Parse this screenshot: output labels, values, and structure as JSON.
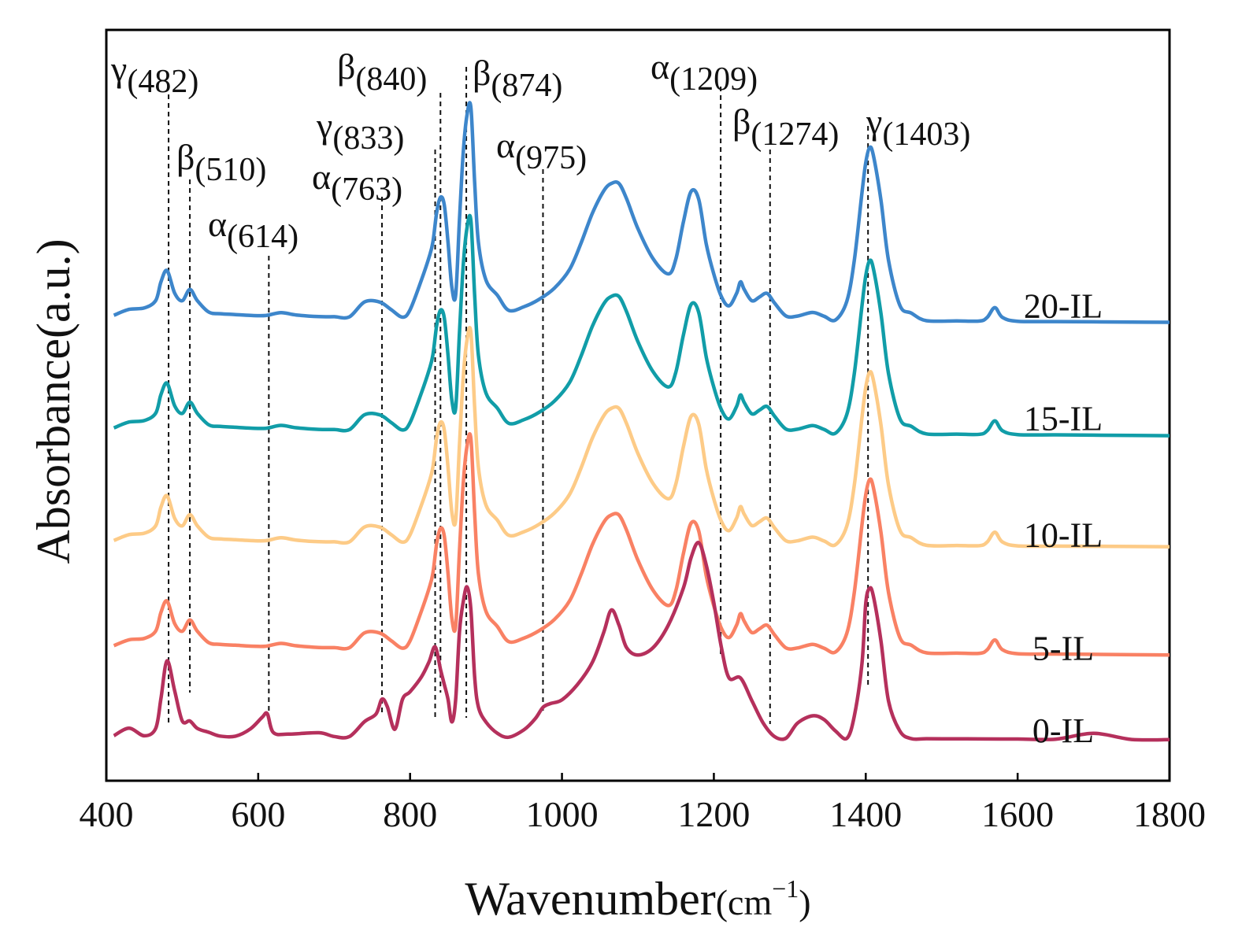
{
  "chart_data": {
    "type": "line",
    "title": "",
    "xlabel": "Wavenumber",
    "xlabel_unit": "(cm",
    "xlabel_sup": "−1",
    "xlabel_close": ")",
    "ylabel": "Absorbance(a.u.)",
    "xlim": [
      400,
      1800
    ],
    "ylim": [
      0,
      100
    ],
    "xticks": [
      400,
      600,
      800,
      1000,
      1200,
      1400,
      1600,
      1800
    ],
    "grid": false,
    "y_ticks_shown": false,
    "series": [
      {
        "name": "20-IL",
        "color": "#3d86cb",
        "baseline": 62,
        "x": [
          410,
          430,
          450,
          465,
          472,
          480,
          490,
          500,
          510,
          520,
          535,
          550,
          570,
          590,
          610,
          630,
          650,
          680,
          700,
          720,
          740,
          760,
          775,
          790,
          800,
          815,
          825,
          830,
          835,
          840,
          845,
          850,
          855,
          860,
          865,
          870,
          875,
          880,
          885,
          890,
          900,
          915,
          930,
          950,
          970,
          990,
          1010,
          1025,
          1040,
          1055,
          1065,
          1075,
          1085,
          1100,
          1120,
          1140,
          1150,
          1160,
          1170,
          1180,
          1190,
          1200,
          1210,
          1220,
          1230,
          1235,
          1240,
          1250,
          1260,
          1270,
          1280,
          1295,
          1310,
          1330,
          1345,
          1360,
          1375,
          1385,
          1395,
          1400,
          1405,
          1410,
          1420,
          1430,
          1445,
          1460,
          1480,
          1520,
          1550,
          1560,
          1570,
          1580,
          1600,
          1650,
          1700,
          1750,
          1800
        ],
        "y": [
          0,
          0.8,
          1,
          2,
          4.5,
          6,
          3,
          2,
          3.5,
          2,
          0.5,
          0.3,
          0.2,
          0.1,
          0.1,
          0.5,
          0.2,
          0,
          0,
          0,
          2,
          2,
          1,
          0,
          1,
          5,
          8,
          10,
          14,
          16,
          15,
          10,
          4,
          3,
          13,
          22,
          27,
          28,
          18,
          10,
          5,
          3,
          1,
          1.5,
          2.5,
          4,
          6.5,
          10,
          14,
          17,
          18,
          18,
          16,
          12,
          8,
          6,
          8,
          13,
          17,
          16,
          10,
          6,
          3,
          1.8,
          3.5,
          5,
          4,
          2.5,
          3,
          3.5,
          2.2,
          0.5,
          0.5,
          1,
          0.5,
          0,
          2.5,
          8,
          17,
          21,
          23,
          22,
          16,
          8,
          2,
          1,
          0,
          0,
          0,
          0.5,
          1.8,
          0.5,
          0,
          0,
          0,
          0,
          0
        ]
      },
      {
        "name": "15-IL",
        "color": "#119da8",
        "baseline": 47,
        "x": [
          410,
          430,
          450,
          465,
          472,
          480,
          490,
          500,
          510,
          520,
          535,
          550,
          570,
          590,
          610,
          630,
          650,
          680,
          700,
          720,
          740,
          760,
          775,
          790,
          800,
          815,
          825,
          830,
          835,
          840,
          845,
          850,
          855,
          860,
          865,
          870,
          875,
          880,
          885,
          890,
          900,
          915,
          930,
          950,
          970,
          990,
          1010,
          1025,
          1040,
          1055,
          1065,
          1075,
          1085,
          1100,
          1120,
          1140,
          1150,
          1160,
          1170,
          1180,
          1190,
          1200,
          1210,
          1220,
          1230,
          1235,
          1240,
          1250,
          1260,
          1270,
          1280,
          1295,
          1310,
          1330,
          1345,
          1360,
          1375,
          1385,
          1395,
          1400,
          1405,
          1410,
          1420,
          1430,
          1445,
          1460,
          1480,
          1520,
          1550,
          1560,
          1570,
          1580,
          1600,
          1650,
          1700,
          1750,
          1800
        ],
        "y": [
          0,
          0.8,
          1,
          2,
          4.5,
          6,
          3,
          2,
          3.5,
          2,
          0.5,
          0.3,
          0.2,
          0.1,
          0.1,
          0.5,
          0.2,
          0,
          0,
          0,
          2,
          2,
          1,
          0,
          1,
          5,
          8,
          10,
          14,
          16,
          15,
          10,
          4,
          3,
          13,
          22,
          27,
          28,
          18,
          10,
          5,
          3,
          1,
          1.5,
          2.5,
          4,
          6.5,
          10,
          14,
          17,
          18,
          18,
          16,
          12,
          8,
          6,
          8,
          13,
          17,
          16,
          10,
          6,
          3,
          1.8,
          3.5,
          5,
          4,
          2.5,
          3,
          3.5,
          2.2,
          0.5,
          0.5,
          1,
          0.5,
          0,
          2.5,
          8,
          17,
          21,
          23,
          22,
          16,
          8,
          2,
          1,
          0,
          0,
          0,
          0.5,
          1.8,
          0.5,
          0,
          0,
          0,
          0,
          0
        ]
      },
      {
        "name": "10-IL",
        "color": "#fdcb87",
        "baseline": 32,
        "x": [
          410,
          430,
          450,
          465,
          472,
          480,
          490,
          500,
          510,
          520,
          535,
          550,
          570,
          590,
          610,
          630,
          650,
          680,
          700,
          720,
          740,
          760,
          775,
          790,
          800,
          815,
          825,
          830,
          835,
          840,
          845,
          850,
          855,
          860,
          865,
          870,
          875,
          880,
          885,
          890,
          900,
          915,
          930,
          950,
          970,
          990,
          1010,
          1025,
          1040,
          1055,
          1065,
          1075,
          1085,
          1100,
          1120,
          1140,
          1150,
          1160,
          1170,
          1180,
          1190,
          1200,
          1210,
          1220,
          1230,
          1235,
          1240,
          1250,
          1260,
          1270,
          1280,
          1295,
          1310,
          1330,
          1345,
          1360,
          1375,
          1385,
          1395,
          1400,
          1405,
          1410,
          1420,
          1430,
          1445,
          1460,
          1480,
          1520,
          1550,
          1560,
          1570,
          1580,
          1600,
          1650,
          1700,
          1750,
          1800
        ],
        "y": [
          0,
          0.8,
          1,
          2,
          4.5,
          6,
          3,
          2,
          3.5,
          2,
          0.5,
          0.3,
          0.2,
          0.1,
          0.1,
          0.5,
          0.2,
          0,
          0,
          0,
          2,
          2,
          1,
          0,
          1,
          5,
          8,
          10,
          14,
          16,
          15,
          10,
          4,
          3,
          13,
          22,
          27,
          28,
          18,
          10,
          5,
          3,
          1,
          1.5,
          2.5,
          4,
          6.5,
          10,
          14,
          17,
          18,
          18,
          16,
          12,
          8,
          6,
          8,
          13,
          17,
          16,
          10,
          6,
          3,
          1.8,
          3.5,
          5,
          4,
          2.5,
          3,
          3.5,
          2.2,
          0.5,
          0.5,
          1,
          0.5,
          0,
          2.5,
          8,
          17,
          21,
          23,
          22,
          16,
          8,
          2,
          1,
          0,
          0,
          0,
          0.5,
          1.8,
          0.5,
          0,
          0,
          0,
          0,
          0
        ]
      },
      {
        "name": "5-IL",
        "color": "#f98164",
        "baseline": 18,
        "x": [
          410,
          430,
          450,
          465,
          472,
          480,
          490,
          500,
          510,
          520,
          535,
          550,
          570,
          590,
          610,
          630,
          650,
          680,
          700,
          720,
          740,
          760,
          775,
          790,
          800,
          815,
          825,
          830,
          835,
          840,
          845,
          850,
          855,
          860,
          865,
          870,
          875,
          880,
          885,
          890,
          900,
          915,
          930,
          950,
          970,
          990,
          1010,
          1025,
          1040,
          1055,
          1065,
          1075,
          1085,
          1100,
          1120,
          1140,
          1150,
          1160,
          1170,
          1180,
          1190,
          1200,
          1210,
          1220,
          1230,
          1235,
          1240,
          1250,
          1260,
          1270,
          1280,
          1295,
          1310,
          1330,
          1345,
          1360,
          1375,
          1385,
          1395,
          1400,
          1405,
          1410,
          1420,
          1430,
          1445,
          1460,
          1480,
          1520,
          1550,
          1560,
          1570,
          1580,
          1600,
          1650,
          1700,
          1750,
          1800
        ],
        "y": [
          0,
          0.8,
          1,
          2,
          4.5,
          6,
          3,
          2,
          3.5,
          2,
          0.5,
          0.3,
          0.2,
          0.1,
          0.1,
          0.5,
          0.2,
          0,
          0,
          0,
          2,
          2,
          1,
          0,
          1,
          5,
          8,
          10,
          14,
          16,
          15,
          10,
          4,
          3,
          13,
          22,
          27,
          28,
          18,
          10,
          5,
          3,
          1,
          1.5,
          2.5,
          4,
          6.5,
          10,
          14,
          17,
          18,
          18,
          16,
          12,
          8,
          6,
          8,
          13,
          17,
          16,
          10,
          6,
          3,
          1.8,
          3.5,
          5,
          4,
          2.5,
          3,
          3.5,
          2.2,
          0.5,
          0.5,
          1,
          0.5,
          0,
          2.5,
          8,
          17,
          21,
          23,
          22,
          16,
          8,
          2,
          1,
          0,
          0,
          0,
          0.5,
          1.8,
          0.5,
          0,
          0,
          0,
          0,
          0
        ]
      },
      {
        "name": "0-IL",
        "color": "#b5305c",
        "baseline": 6,
        "x": [
          410,
          430,
          450,
          465,
          472,
          480,
          490,
          500,
          510,
          520,
          535,
          550,
          570,
          590,
          605,
          612,
          620,
          640,
          680,
          700,
          720,
          740,
          755,
          763,
          770,
          780,
          790,
          800,
          815,
          825,
          833,
          840,
          845,
          850,
          855,
          860,
          865,
          870,
          875,
          880,
          885,
          890,
          900,
          915,
          930,
          950,
          965,
          975,
          985,
          1000,
          1020,
          1040,
          1055,
          1065,
          1075,
          1085,
          1100,
          1120,
          1140,
          1160,
          1170,
          1180,
          1190,
          1200,
          1210,
          1220,
          1235,
          1250,
          1265,
          1280,
          1295,
          1310,
          1330,
          1345,
          1360,
          1375,
          1385,
          1395,
          1400,
          1405,
          1410,
          1420,
          1430,
          1445,
          1460,
          1480,
          1520,
          1550,
          1600,
          1650,
          1700,
          1750,
          1800
        ],
        "y": [
          0,
          1,
          0,
          1,
          5,
          10,
          6,
          2,
          2,
          1,
          0.5,
          0,
          0,
          1,
          2.5,
          3,
          0.5,
          0.3,
          0.5,
          0,
          0,
          2,
          3,
          5,
          4,
          1,
          5,
          6,
          8,
          10,
          12,
          9,
          7,
          5,
          2,
          5,
          14,
          18,
          20,
          17,
          8,
          4,
          2,
          0.5,
          0,
          1,
          2.5,
          4,
          4.5,
          5,
          7,
          10,
          14,
          17,
          15,
          12,
          11,
          12,
          15,
          20,
          24,
          26,
          23,
          18,
          12,
          8,
          8,
          5,
          2,
          0.2,
          0,
          2,
          3,
          2.5,
          1,
          0,
          3,
          10,
          18,
          20,
          19,
          13,
          5,
          1,
          0,
          0,
          0,
          0,
          0,
          0,
          0.8,
          0,
          0
        ]
      }
    ],
    "annotations": [
      {
        "symbol": "γ",
        "value": "(482)",
        "x": 482
      },
      {
        "symbol": "β",
        "value": "(510)",
        "x": 510
      },
      {
        "symbol": "α",
        "value": "(614)",
        "x": 614
      },
      {
        "symbol": "α",
        "value": "(763)",
        "x": 763
      },
      {
        "symbol": "γ",
        "value": "(833)",
        "x": 833
      },
      {
        "symbol": "β",
        "value": "(840)",
        "x": 840
      },
      {
        "symbol": "β",
        "value": "(874)",
        "x": 874
      },
      {
        "symbol": "α",
        "value": "(975)",
        "x": 975
      },
      {
        "symbol": "α",
        "value": "(1209)",
        "x": 1209
      },
      {
        "symbol": "β",
        "value": "(1274)",
        "x": 1274
      },
      {
        "symbol": "γ",
        "value": "(1403)",
        "x": 1403
      }
    ]
  }
}
